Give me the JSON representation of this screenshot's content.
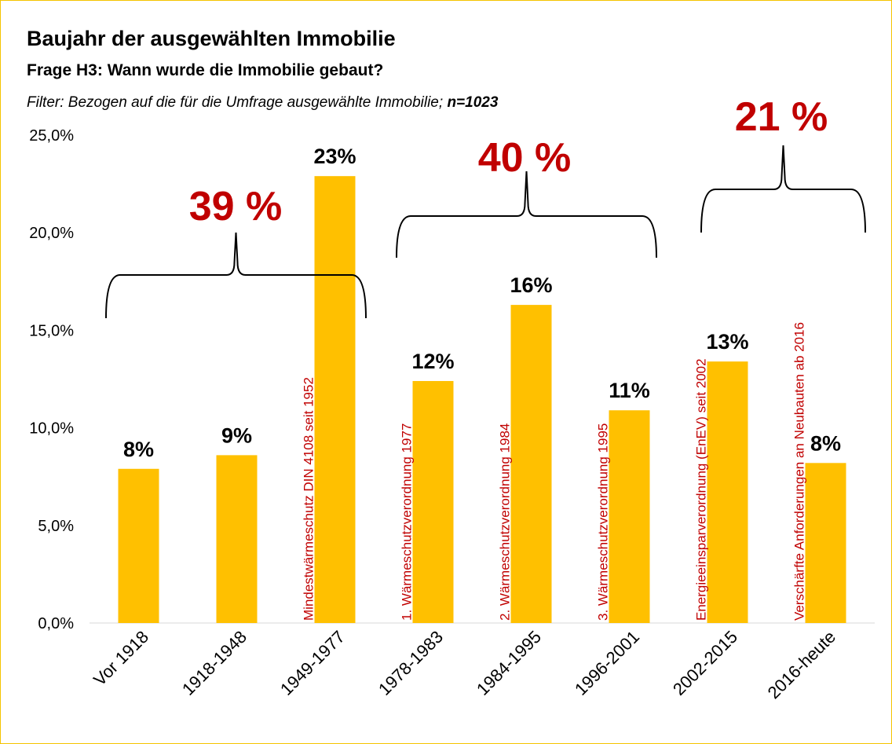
{
  "chart_data": {
    "type": "bar",
    "title": "Baujahr der ausgewählten Immobilie",
    "subtitle": "Frage H3: Wann wurde die Immobilie gebaut?",
    "filter": "Filter: Bezogen auf die für die Umfrage ausgewählte Immobilie; ",
    "filter_n": "n=1023",
    "categories": [
      "Vor 1918",
      "1918-1948",
      "1949-1977",
      "1978-1983",
      "1984-1995",
      "1996-2001",
      "2002-2015",
      "2016-heute"
    ],
    "values": [
      7.9,
      8.6,
      22.9,
      12.4,
      16.3,
      10.9,
      13.4,
      8.2
    ],
    "value_labels": [
      "8%",
      "9%",
      "23%",
      "12%",
      "16%",
      "11%",
      "13%",
      "8%"
    ],
    "color": "#ffc000",
    "ylim": [
      0,
      25
    ],
    "yticks": [
      {
        "value": 0,
        "label": "0,0%"
      },
      {
        "value": 5,
        "label": "5,0%"
      },
      {
        "value": 10,
        "label": "10,0%"
      },
      {
        "value": 15,
        "label": "15,0%"
      },
      {
        "value": 20,
        "label": "20,0%"
      },
      {
        "value": 25,
        "label": "25,0%"
      }
    ],
    "grid": false,
    "regulations": [
      "Mindestwärmeschutz DIN 4108 seit 1952",
      "1. Wärmeschutzverordnung 1977",
      "2. Wärmeschutzverordnung 1984",
      "3. Wärmeschutzverordnung 1995",
      "Energieeinsparverordnung (EnEV) seit 2002",
      "Verschärfte Anforderungen an Neubauten ab 2016"
    ],
    "group_labels": [
      "39 %",
      "40 %",
      "21 %"
    ]
  }
}
